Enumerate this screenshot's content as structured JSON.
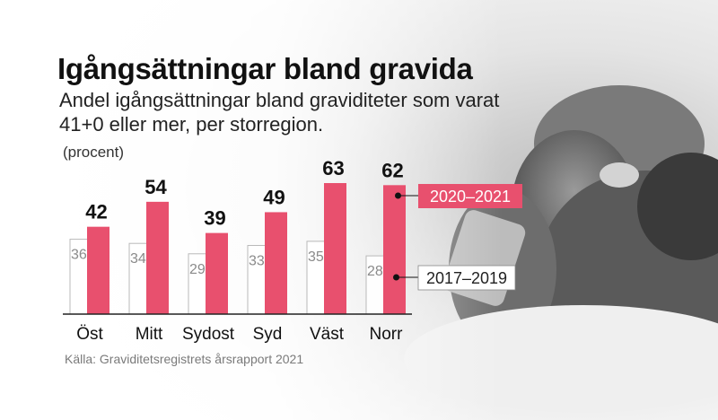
{
  "title": "Igångsättningar bland gravida",
  "subtitle": "Andel igångsättningar bland graviditeter som varat 41+0 eller mer, per storregion.",
  "unit_label": "(procent)",
  "source": "Källa: Graviditetsregistrets årsrapport 2021",
  "colors": {
    "accent": "#e8506e",
    "old_bar_border": "#b9b9b9",
    "text": "#111111"
  },
  "chart_data": {
    "type": "bar",
    "title": "Igångsättningar bland gravida",
    "subtitle": "Andel igångsättningar bland graviditeter som varat 41+0 eller mer, per storregion.",
    "ylabel": "(procent)",
    "categories": [
      "Öst",
      "Mitt",
      "Sydost",
      "Syd",
      "Väst",
      "Norr"
    ],
    "series": [
      {
        "name": "2017–2019",
        "values": [
          36,
          34,
          29,
          33,
          35,
          28
        ]
      },
      {
        "name": "2020–2021",
        "values": [
          42,
          54,
          39,
          49,
          63,
          62
        ]
      }
    ],
    "ylim": [
      0,
      63
    ],
    "grid": false,
    "legend": "right"
  }
}
